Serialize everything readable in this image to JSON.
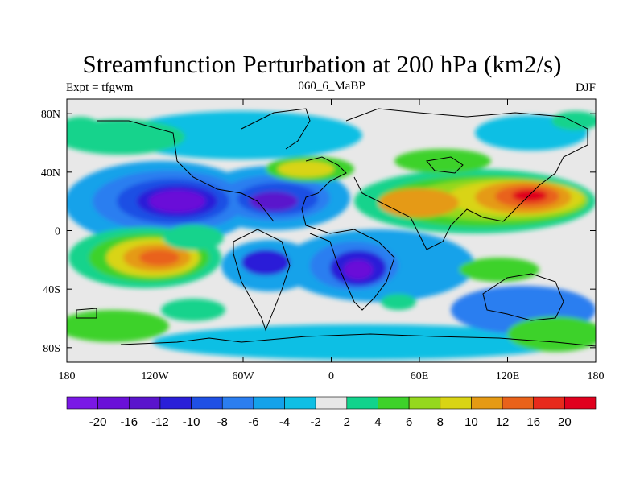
{
  "chart_data": {
    "type": "heatmap",
    "title": "Streamfunction Perturbation at 200 hPa (km2/s)",
    "subtitle_left": "Expt = tfgwm",
    "subtitle_center": "060_6_MaBP",
    "subtitle_right": "DJF",
    "x_ticks": [
      "180",
      "120W",
      "60W",
      "0",
      "60E",
      "120E",
      "180"
    ],
    "x_tick_values": [
      -180,
      -120,
      -60,
      0,
      60,
      120,
      180
    ],
    "y_ticks": [
      "80N",
      "40N",
      "0",
      "40S",
      "80S"
    ],
    "y_tick_values": [
      80,
      40,
      0,
      -40,
      -80
    ],
    "xlim": [
      -180,
      180
    ],
    "ylim": [
      -90,
      90
    ],
    "colorbar_labels": [
      "-20",
      "-16",
      "-12",
      "-10",
      "-8",
      "-6",
      "-4",
      "-2",
      "2",
      "4",
      "6",
      "8",
      "10",
      "12",
      "16",
      "20"
    ],
    "colorbar_colors": [
      "#7a18e6",
      "#6a10d8",
      "#5a14cc",
      "#2a1fd8",
      "#1f50e4",
      "#2b7ef0",
      "#14a2ea",
      "#0fbfe4",
      "#e8e8e8",
      "#12d38c",
      "#3ed22a",
      "#95d81e",
      "#d9d414",
      "#e59a14",
      "#e9621a",
      "#e82a1c",
      "#e0001e"
    ],
    "features": [
      {
        "name": "negative center",
        "lon": -110,
        "lat": 20,
        "value": -20
      },
      {
        "name": "negative center",
        "lon": -25,
        "lat": 22,
        "value": -14
      },
      {
        "name": "negative center",
        "lon": -40,
        "lat": -22,
        "value": -14
      },
      {
        "name": "negative center",
        "lon": 20,
        "lat": -25,
        "value": -16
      },
      {
        "name": "negative center",
        "lon": -60,
        "lat": 65,
        "value": -6
      },
      {
        "name": "negative center",
        "lon": 105,
        "lat": -55,
        "value": -8
      },
      {
        "name": "positive center",
        "lon": 130,
        "lat": 24,
        "value": 20
      },
      {
        "name": "positive center",
        "lon": 70,
        "lat": 18,
        "value": 12
      },
      {
        "name": "positive center",
        "lon": -130,
        "lat": -20,
        "value": 12
      },
      {
        "name": "positive center",
        "lon": -20,
        "lat": 38,
        "value": 8
      },
      {
        "name": "positive center",
        "lon": 145,
        "lat": -65,
        "value": 6
      },
      {
        "name": "positive center",
        "lon": -145,
        "lat": -55,
        "value": 6
      }
    ]
  }
}
